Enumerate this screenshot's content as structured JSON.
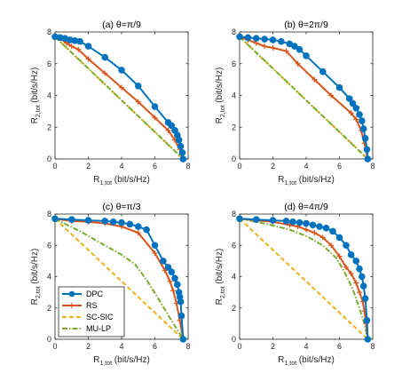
{
  "colors": {
    "DPC": "#0072BD",
    "RS": "#D95319",
    "SC-SIC": "#EDB120",
    "MU-LP": "#77AC30"
  },
  "legend": {
    "placement": "lower-left of panel (c)",
    "entries": [
      {
        "label": "DPC",
        "color": "#0072BD",
        "style": "solid",
        "marker": "circle"
      },
      {
        "label": "RS",
        "color": "#D95319",
        "style": "solid",
        "marker": "plus"
      },
      {
        "label": "SC-SIC",
        "color": "#EDB120",
        "style": "dashed",
        "marker": "none"
      },
      {
        "label": "MU-LP",
        "color": "#77AC30",
        "style": "dashdot",
        "marker": "none"
      }
    ]
  },
  "chart_data": [
    {
      "type": "line",
      "title": "(a) θ=π/9",
      "xlabel": "R",
      "xlabel_sub": "1,tot",
      "xlabel_unit": " (bit/s/Hz)",
      "ylabel": "R",
      "ylabel_sub": "2,tot",
      "ylabel_unit": " (bit/s/Hz)",
      "xlim": [
        0,
        8
      ],
      "ylim": [
        0,
        8
      ],
      "xticks": [
        0,
        2,
        4,
        6,
        8
      ],
      "yticks": [
        0,
        2,
        4,
        6,
        8
      ],
      "grid": false,
      "series": [
        {
          "name": "SC-SIC",
          "x": [
            0,
            7.7
          ],
          "y": [
            7.7,
            0
          ]
        },
        {
          "name": "MU-LP",
          "x": [
            0,
            7.7
          ],
          "y": [
            7.7,
            0
          ]
        },
        {
          "name": "RS",
          "x": [
            0,
            0.3,
            0.7,
            1.0,
            1.4,
            2.0,
            3.0,
            4.0,
            5.0,
            6.0,
            6.8,
            7.2,
            7.5,
            7.7
          ],
          "y": [
            7.7,
            7.6,
            7.3,
            7.1,
            6.9,
            6.3,
            5.4,
            4.5,
            3.6,
            2.6,
            1.8,
            1.2,
            0.6,
            0
          ]
        },
        {
          "name": "DPC",
          "x": [
            0,
            0.3,
            0.6,
            0.9,
            1.2,
            1.5,
            2.0,
            3.0,
            4.0,
            5.0,
            6.0,
            6.8,
            7.0,
            7.2,
            7.35,
            7.45,
            7.55,
            7.65,
            7.7
          ],
          "y": [
            7.7,
            7.65,
            7.6,
            7.5,
            7.45,
            7.4,
            7.1,
            6.4,
            5.6,
            4.6,
            3.3,
            2.3,
            2.1,
            1.8,
            1.5,
            1.2,
            0.8,
            0.4,
            0
          ]
        }
      ]
    },
    {
      "type": "line",
      "title": "(b) θ=2π/9",
      "xlabel": "R",
      "xlabel_sub": "1,tot",
      "xlabel_unit": " (bit/s/Hz)",
      "ylabel": "R",
      "ylabel_sub": "2,tot",
      "ylabel_unit": " (bit/s/Hz)",
      "xlim": [
        0,
        8
      ],
      "ylim": [
        0,
        8
      ],
      "xticks": [
        0,
        2,
        4,
        6,
        8
      ],
      "yticks": [
        0,
        2,
        4,
        6,
        8
      ],
      "grid": false,
      "series": [
        {
          "name": "SC-SIC",
          "x": [
            0,
            7.7
          ],
          "y": [
            7.7,
            0
          ]
        },
        {
          "name": "MU-LP",
          "x": [
            0,
            7.7
          ],
          "y": [
            7.7,
            0
          ]
        },
        {
          "name": "RS",
          "x": [
            0,
            0.5,
            1.0,
            1.5,
            2.0,
            2.8,
            3.5,
            4.5,
            5.5,
            6.7,
            7.0,
            7.3,
            7.5,
            7.7
          ],
          "y": [
            7.7,
            7.5,
            7.3,
            7.1,
            7.0,
            6.8,
            6.0,
            5.0,
            4.0,
            2.9,
            2.5,
            1.8,
            1.0,
            0
          ]
        },
        {
          "name": "DPC",
          "x": [
            0,
            0.5,
            1.0,
            1.5,
            2.0,
            2.5,
            3.0,
            3.3,
            3.6,
            4.0,
            5.0,
            6.0,
            6.6,
            6.8,
            7.0,
            7.2,
            7.35,
            7.45,
            7.55,
            7.65,
            7.7
          ],
          "y": [
            7.7,
            7.65,
            7.6,
            7.55,
            7.5,
            7.4,
            7.25,
            7.1,
            6.9,
            6.5,
            5.5,
            4.5,
            3.8,
            3.5,
            3.2,
            2.8,
            2.4,
            1.9,
            1.3,
            0.6,
            0
          ]
        }
      ]
    },
    {
      "type": "line",
      "title": "(c) θ=π/3",
      "xlabel": "R",
      "xlabel_sub": "1,tot",
      "xlabel_unit": " (bit/s/Hz)",
      "ylabel": "R",
      "ylabel_sub": "2,tot",
      "ylabel_unit": " (bit/s/Hz)",
      "xlim": [
        0,
        8
      ],
      "ylim": [
        0,
        8
      ],
      "xticks": [
        0,
        2,
        4,
        6,
        8
      ],
      "yticks": [
        0,
        2,
        4,
        6,
        8
      ],
      "grid": false,
      "series": [
        {
          "name": "SC-SIC",
          "x": [
            0,
            7.7
          ],
          "y": [
            7.7,
            0
          ]
        },
        {
          "name": "MU-LP",
          "x": [
            0,
            1.5,
            3.0,
            4.0,
            4.8,
            5.5,
            6.2,
            7.0,
            7.7
          ],
          "y": [
            7.7,
            6.9,
            6.0,
            5.4,
            4.8,
            3.8,
            2.6,
            1.2,
            0
          ]
        },
        {
          "name": "RS",
          "x": [
            0,
            1.0,
            2.0,
            3.0,
            4.0,
            5.0,
            6.0,
            6.6,
            6.9,
            7.1,
            7.3,
            7.5,
            7.7
          ],
          "y": [
            7.7,
            7.55,
            7.5,
            7.4,
            7.2,
            6.8,
            5.5,
            4.4,
            3.7,
            3.1,
            2.3,
            1.2,
            0
          ]
        },
        {
          "name": "DPC",
          "x": [
            0,
            1.0,
            2.0,
            3.0,
            3.5,
            4.0,
            4.5,
            5.0,
            5.5,
            6.0,
            6.5,
            6.8,
            7.0,
            7.2,
            7.35,
            7.45,
            7.5,
            7.55,
            7.6,
            7.7
          ],
          "y": [
            7.7,
            7.65,
            7.6,
            7.55,
            7.5,
            7.45,
            7.35,
            7.2,
            7.0,
            6.0,
            5.0,
            4.6,
            4.3,
            3.9,
            3.5,
            3.0,
            2.7,
            2.4,
            1.5,
            0
          ]
        }
      ]
    },
    {
      "type": "line",
      "title": "(d) θ=4π/9",
      "xlabel": "R",
      "xlabel_sub": "1,tot",
      "xlabel_unit": " (bit/s/Hz)",
      "ylabel": "R",
      "ylabel_sub": "2,tot",
      "ylabel_unit": " (bit/s/Hz)",
      "xlim": [
        0,
        8
      ],
      "ylim": [
        0,
        8
      ],
      "xticks": [
        0,
        2,
        4,
        6,
        8
      ],
      "yticks": [
        0,
        2,
        4,
        6,
        8
      ],
      "grid": false,
      "series": [
        {
          "name": "SC-SIC",
          "x": [
            0,
            7.7
          ],
          "y": [
            7.7,
            0
          ]
        },
        {
          "name": "MU-LP",
          "x": [
            0,
            1.5,
            3.0,
            4.0,
            5.0,
            5.8,
            6.3,
            6.8,
            7.2,
            7.5,
            7.7
          ],
          "y": [
            7.7,
            7.4,
            7.0,
            6.6,
            6.0,
            5.2,
            4.3,
            3.2,
            2.0,
            1.0,
            0
          ]
        },
        {
          "name": "RS",
          "x": [
            0,
            1.0,
            2.0,
            3.0,
            3.5,
            4.0,
            4.5,
            5.0,
            5.5,
            6.0,
            6.4,
            6.7,
            7.0,
            7.2,
            7.4,
            7.5,
            7.6,
            7.7
          ],
          "y": [
            7.7,
            7.6,
            7.5,
            7.3,
            7.2,
            7.0,
            6.8,
            6.5,
            6.0,
            5.3,
            4.6,
            4.2,
            3.6,
            3.0,
            2.4,
            1.8,
            1.0,
            0
          ]
        },
        {
          "name": "DPC",
          "x": [
            0,
            1.0,
            2.0,
            2.8,
            3.2,
            3.6,
            4.0,
            4.4,
            4.8,
            5.2,
            5.6,
            6.0,
            6.4,
            6.7,
            7.0,
            7.2,
            7.35,
            7.45,
            7.55,
            7.65,
            7.7
          ],
          "y": [
            7.7,
            7.65,
            7.6,
            7.55,
            7.5,
            7.45,
            7.4,
            7.3,
            7.2,
            7.1,
            6.9,
            6.5,
            6.0,
            5.4,
            5.0,
            4.5,
            4.0,
            3.4,
            2.6,
            1.2,
            0
          ]
        }
      ]
    }
  ]
}
